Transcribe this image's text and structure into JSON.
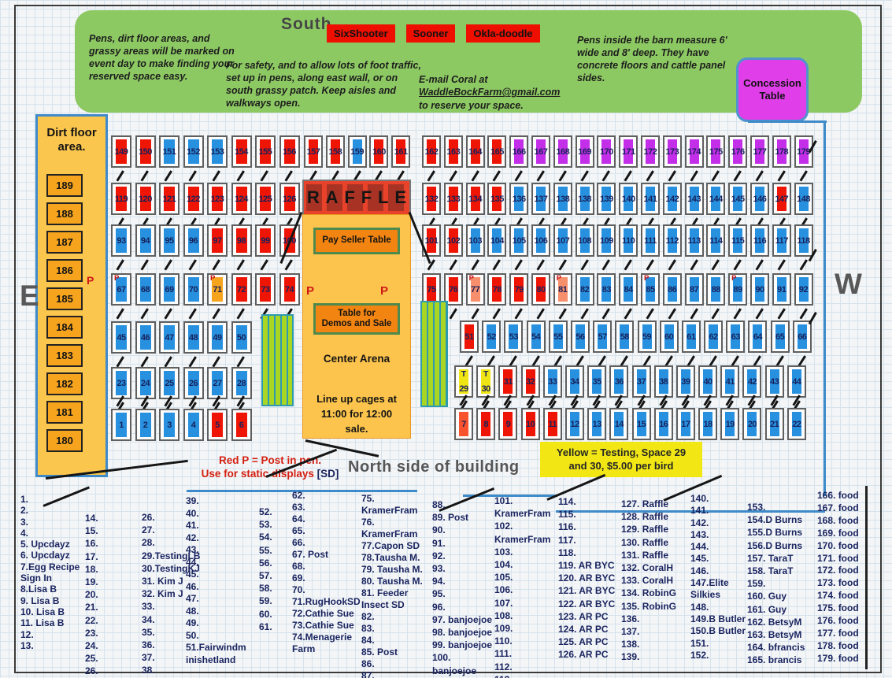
{
  "config": {
    "colors": {
      "red": "#ee1505",
      "blue": "#2791e0",
      "purple": "#c32ee8",
      "yellow": "#efe414",
      "orange": "#f6a41e",
      "salmon": "#f78f6d",
      "redorange": "#f9532e"
    }
  },
  "banner": {
    "note_left": "Pens, dirt floor areas, and grassy areas will  be marked on  event day to make finding your reserved space easy.",
    "south_label": "South",
    "buttons": [
      "SixShooter",
      "Sooner",
      "Okla-doodle"
    ],
    "note_center": "For safety, and to allow lots of foot traffic, set up in pens, along east wall, or on south grassy patch.  Keep aisles and walkways open.",
    "email_pre": "E-mail Coral at ",
    "email_address": "WaddleBockFarm@gmail.com",
    "email_post": " to reserve your space.",
    "note_right": "Pens inside the barn measure 6' wide and 8' deep.  They have concrete floors and cattle panel sides.",
    "concession_label": "Concession Table"
  },
  "walls": {
    "east": "E",
    "west": "W",
    "north_label": "North side of building"
  },
  "dirt_floor": {
    "title_line1": "Dirt floor",
    "title_line2": "area.",
    "p_mark": "P",
    "spaces": [
      "189",
      "188",
      "187",
      "186",
      "185",
      "184",
      "183",
      "182",
      "181",
      "180"
    ]
  },
  "raffle": {
    "letters": [
      "R",
      "A",
      "F",
      "F",
      "L",
      "E"
    ]
  },
  "center_arena": {
    "pay_seller": "Pay  Seller Table",
    "p_left": "P",
    "p_right": "P",
    "demos_line1": "Table for",
    "demos_line2": "Demos and Sale",
    "arena_label": "Center Arena",
    "lineup": "Line up cages at 11:00 for 12:00 sale."
  },
  "legends": {
    "red_p_line1": "Red P = Post in pen.",
    "red_p_line2": "Use for static displays ",
    "red_p_sd": "[SD]",
    "yellow_line1": "Yellow = Testing, Space 29",
    "yellow_line2": "and 30,  $5.00 per bird"
  },
  "pen_rows": [
    {
      "pens": [
        {
          "n": "149",
          "c": "red"
        },
        {
          "n": "150",
          "c": "red"
        },
        {
          "n": "151",
          "c": "blue"
        },
        {
          "n": "152",
          "c": "blue"
        },
        {
          "n": "153",
          "c": "blue"
        },
        {
          "n": "154",
          "c": "red"
        },
        {
          "n": "155",
          "c": "red"
        },
        {
          "n": "156",
          "c": "red"
        }
      ]
    },
    {
      "pens": [
        {
          "n": "157",
          "c": "red"
        },
        {
          "n": "158",
          "c": "red"
        },
        {
          "n": "159",
          "c": "blue"
        },
        {
          "n": "160",
          "c": "red"
        },
        {
          "n": "161",
          "c": "red"
        }
      ]
    },
    {
      "pens": [
        {
          "n": "162",
          "c": "red"
        },
        {
          "n": "163",
          "c": "red"
        },
        {
          "n": "164",
          "c": "red"
        },
        {
          "n": "165",
          "c": "red"
        },
        {
          "n": "166",
          "c": "purple"
        },
        {
          "n": "167",
          "c": "purple"
        },
        {
          "n": "168",
          "c": "purple"
        },
        {
          "n": "169",
          "c": "purple"
        },
        {
          "n": "170",
          "c": "purple"
        },
        {
          "n": "171",
          "c": "purple"
        },
        {
          "n": "172",
          "c": "purple"
        },
        {
          "n": "173",
          "c": "purple"
        },
        {
          "n": "174",
          "c": "purple"
        },
        {
          "n": "175",
          "c": "purple"
        },
        {
          "n": "176",
          "c": "purple"
        },
        {
          "n": "177",
          "c": "purple"
        },
        {
          "n": "178",
          "c": "purple"
        },
        {
          "n": "179",
          "c": "purple"
        }
      ]
    },
    {
      "pens": [
        {
          "n": "119",
          "c": "red"
        },
        {
          "n": "120",
          "c": "red"
        },
        {
          "n": "121",
          "c": "red"
        },
        {
          "n": "122",
          "c": "red"
        },
        {
          "n": "123",
          "c": "red"
        },
        {
          "n": "124",
          "c": "red"
        },
        {
          "n": "125",
          "c": "red"
        },
        {
          "n": "126",
          "c": "red"
        }
      ]
    },
    {
      "pens": [
        {
          "n": "132",
          "c": "red"
        },
        {
          "n": "133",
          "c": "red"
        },
        {
          "n": "134",
          "c": "red"
        },
        {
          "n": "135",
          "c": "red"
        },
        {
          "n": "136",
          "c": "blue"
        },
        {
          "n": "137",
          "c": "blue"
        },
        {
          "n": "138",
          "c": "blue"
        },
        {
          "n": "138",
          "c": "blue"
        },
        {
          "n": "139",
          "c": "blue"
        },
        {
          "n": "140",
          "c": "blue"
        },
        {
          "n": "141",
          "c": "blue"
        },
        {
          "n": "142",
          "c": "blue"
        },
        {
          "n": "143",
          "c": "blue"
        },
        {
          "n": "144",
          "c": "blue"
        },
        {
          "n": "145",
          "c": "blue"
        },
        {
          "n": "146",
          "c": "blue"
        },
        {
          "n": "147",
          "c": "red"
        },
        {
          "n": "148",
          "c": "blue"
        }
      ]
    },
    {
      "pens": [
        {
          "n": "93",
          "c": "blue"
        },
        {
          "n": "94",
          "c": "blue"
        },
        {
          "n": "95",
          "c": "blue"
        },
        {
          "n": "96",
          "c": "blue"
        },
        {
          "n": "97",
          "c": "red"
        },
        {
          "n": "98",
          "c": "red"
        },
        {
          "n": "99",
          "c": "red"
        },
        {
          "n": "100",
          "c": "red"
        }
      ]
    },
    {
      "pens": [
        {
          "n": "101",
          "c": "red"
        },
        {
          "n": "102",
          "c": "red"
        },
        {
          "n": "103",
          "c": "blue"
        },
        {
          "n": "104",
          "c": "blue"
        },
        {
          "n": "105",
          "c": "blue"
        },
        {
          "n": "106",
          "c": "blue"
        },
        {
          "n": "107",
          "c": "blue"
        },
        {
          "n": "108",
          "c": "blue"
        },
        {
          "n": "109",
          "c": "blue"
        },
        {
          "n": "110",
          "c": "blue"
        },
        {
          "n": "111",
          "c": "blue"
        },
        {
          "n": "112",
          "c": "blue"
        },
        {
          "n": "113",
          "c": "blue"
        },
        {
          "n": "114",
          "c": "blue"
        },
        {
          "n": "115",
          "c": "blue"
        },
        {
          "n": "116",
          "c": "blue"
        },
        {
          "n": "117",
          "c": "blue"
        },
        {
          "n": "118",
          "c": "blue"
        }
      ]
    },
    {
      "pens": [
        {
          "n": "67",
          "c": "blue",
          "t": "P"
        },
        {
          "n": "68",
          "c": "blue"
        },
        {
          "n": "69",
          "c": "blue"
        },
        {
          "n": "70",
          "c": "blue"
        },
        {
          "n": "71",
          "c": "orange",
          "t": "P"
        },
        {
          "n": "72",
          "c": "red"
        },
        {
          "n": "73",
          "c": "red"
        },
        {
          "n": "74",
          "c": "red"
        }
      ]
    },
    {
      "pens": [
        {
          "n": "75",
          "c": "red"
        },
        {
          "n": "76",
          "c": "red"
        },
        {
          "n": "77",
          "c": "salmon",
          "t": "P"
        },
        {
          "n": "78",
          "c": "red"
        },
        {
          "n": "79",
          "c": "red"
        },
        {
          "n": "80",
          "c": "red"
        },
        {
          "n": "81",
          "c": "salmon",
          "t": "P"
        },
        {
          "n": "82",
          "c": "blue"
        },
        {
          "n": "83",
          "c": "blue"
        },
        {
          "n": "84",
          "c": "blue"
        },
        {
          "n": "85",
          "c": "blue",
          "t": "P"
        },
        {
          "n": "86",
          "c": "blue"
        },
        {
          "n": "87",
          "c": "blue"
        },
        {
          "n": "88",
          "c": "blue"
        },
        {
          "n": "89",
          "c": "blue",
          "t": "P"
        },
        {
          "n": "90",
          "c": "blue"
        },
        {
          "n": "91",
          "c": "blue"
        },
        {
          "n": "92",
          "c": "blue"
        }
      ]
    },
    {
      "pens": [
        {
          "n": "45",
          "c": "blue"
        },
        {
          "n": "46",
          "c": "blue"
        },
        {
          "n": "47",
          "c": "blue"
        },
        {
          "n": "48",
          "c": "blue"
        },
        {
          "n": "49",
          "c": "blue"
        },
        {
          "n": "50",
          "c": "blue"
        }
      ]
    },
    {
      "pens": [
        {
          "n": "51",
          "c": "red"
        },
        {
          "n": "52",
          "c": "blue"
        },
        {
          "n": "53",
          "c": "blue"
        },
        {
          "n": "54",
          "c": "blue"
        },
        {
          "n": "55",
          "c": "blue"
        },
        {
          "n": "56",
          "c": "blue"
        },
        {
          "n": "57",
          "c": "blue"
        },
        {
          "n": "58",
          "c": "blue"
        },
        {
          "n": "59",
          "c": "blue"
        },
        {
          "n": "60",
          "c": "blue"
        },
        {
          "n": "61",
          "c": "blue"
        },
        {
          "n": "62",
          "c": "blue"
        },
        {
          "n": "63",
          "c": "blue"
        },
        {
          "n": "64",
          "c": "blue"
        },
        {
          "n": "65",
          "c": "blue"
        },
        {
          "n": "66",
          "c": "blue"
        }
      ]
    },
    {
      "pens": [
        {
          "n": "23",
          "c": "blue"
        },
        {
          "n": "24",
          "c": "blue"
        },
        {
          "n": "25",
          "c": "blue"
        },
        {
          "n": "26",
          "c": "blue"
        },
        {
          "n": "27",
          "c": "blue"
        },
        {
          "n": "28",
          "c": "blue"
        }
      ]
    },
    {
      "pens": [
        {
          "n": "29",
          "c": "yellow",
          "t": "T"
        },
        {
          "n": "30",
          "c": "yellow",
          "t": "T"
        },
        {
          "n": "31",
          "c": "red"
        },
        {
          "n": "32",
          "c": "red"
        },
        {
          "n": "33",
          "c": "blue"
        },
        {
          "n": "34",
          "c": "blue"
        },
        {
          "n": "35",
          "c": "blue"
        },
        {
          "n": "36",
          "c": "blue"
        },
        {
          "n": "37",
          "c": "blue"
        },
        {
          "n": "38",
          "c": "blue"
        },
        {
          "n": "39",
          "c": "blue"
        },
        {
          "n": "40",
          "c": "blue"
        },
        {
          "n": "41",
          "c": "blue"
        },
        {
          "n": "42",
          "c": "blue"
        },
        {
          "n": "43",
          "c": "blue"
        },
        {
          "n": "44",
          "c": "blue"
        }
      ]
    },
    {
      "pens": [
        {
          "n": "1",
          "c": "blue"
        },
        {
          "n": "2",
          "c": "blue"
        },
        {
          "n": "3",
          "c": "blue"
        },
        {
          "n": "4",
          "c": "blue"
        },
        {
          "n": "5",
          "c": "red"
        },
        {
          "n": "6",
          "c": "red"
        }
      ]
    },
    {
      "pens": [
        {
          "n": "7",
          "c": "redorange"
        },
        {
          "n": "8",
          "c": "red"
        },
        {
          "n": "9",
          "c": "red"
        },
        {
          "n": "10",
          "c": "red"
        },
        {
          "n": "11",
          "c": "red"
        },
        {
          "n": "12",
          "c": "blue"
        },
        {
          "n": "13",
          "c": "blue"
        },
        {
          "n": "14",
          "c": "blue"
        },
        {
          "n": "15",
          "c": "blue"
        },
        {
          "n": "16",
          "c": "blue"
        },
        {
          "n": "17",
          "c": "blue"
        },
        {
          "n": "18",
          "c": "blue"
        },
        {
          "n": "19",
          "c": "blue"
        },
        {
          "n": "20",
          "c": "blue"
        },
        {
          "n": "21",
          "c": "blue"
        },
        {
          "n": "22",
          "c": "blue"
        }
      ]
    }
  ],
  "roster": {
    "columns": [
      {
        "items": [
          "1.",
          "2.",
          "3.",
          "4.",
          "5. Upcdayz",
          "6. Upcdayz",
          "7.Egg Recipe Sign In",
          "8.Lisa B",
          "9. Lisa B",
          "10. Lisa B",
          "11. Lisa B",
          "12.",
          "13."
        ]
      },
      {
        "items": [
          "14.",
          "15.",
          "16.",
          "17.",
          "18.",
          "19.",
          "20.",
          "21.",
          "22.",
          "23.",
          "24.",
          "25.",
          "26."
        ]
      },
      {
        "items": [
          "26.",
          "27.",
          "28.",
          "29.TestingLB",
          "30.TestingKJ",
          "31. Kim J",
          "32. Kim J",
          "33.",
          "34.",
          "35.",
          "36.",
          "37.",
          "38."
        ]
      },
      {
        "items": [
          "39.",
          "40.",
          "41.",
          "42.",
          "43.",
          "44.",
          "45.",
          "46.",
          "47.",
          "48.",
          "49.",
          "50.",
          "51.Fairwindm inishetland"
        ]
      },
      {
        "items": [
          "52.",
          "53.",
          "54.",
          "55.",
          "56.",
          "57.",
          "58.",
          "59.",
          "60.",
          "61."
        ]
      },
      {
        "items": [
          "62.",
          "63.",
          "64.",
          "65.",
          "66.",
          "67. Post",
          "68.",
          "69.",
          "70.",
          "71.RugHookSD",
          "72.Cathie Sue",
          "73.Cathie Sue",
          "74.Menagerie Farm"
        ]
      },
      {
        "items": [
          "75. KramerFram",
          "76. KramerFram",
          "77.Capon SD",
          "78.Tausha M.",
          "79. Tausha M.",
          "80. Tausha M.",
          "81. Feeder Insect SD",
          "82.",
          "83.",
          "84.",
          "85. Post",
          "86.",
          "87."
        ]
      },
      {
        "items": [
          "88.",
          "89. Post",
          "90.",
          "91.",
          "92.",
          "93.",
          "94.",
          "95.",
          "96.",
          "97. banjoejoe",
          "98. banjoejoe",
          "99. banjoejoe",
          "100. banjoejoe"
        ]
      },
      {
        "items": [
          "101. KramerFram",
          "102. KramerFram",
          "103.",
          "104.",
          "105.",
          "106.",
          "107.",
          "108.",
          "109.",
          "110.",
          "111.",
          "112.",
          "113."
        ]
      },
      {
        "items": [
          "114.",
          "115.",
          "116.",
          "117.",
          "118.",
          "119. AR BYC",
          "120. AR BYC",
          "121. AR BYC",
          "122. AR BYC",
          "123. AR PC",
          "124. AR PC",
          "125. AR PC",
          "126. AR PC"
        ]
      },
      {
        "items": [
          "127. Raffle",
          "128. Raffle",
          "129. Raffle",
          "130. Raffle",
          "131. Raffle",
          "132. CoralH",
          "133. CoralH",
          "134. RobinG",
          "135. RobinG",
          "136.",
          "137.",
          "138.",
          "139."
        ]
      },
      {
        "items": [
          "140.",
          "141.",
          "142.",
          "143.",
          "144.",
          "145.",
          "146.",
          "147.Elite Silkies",
          "148.",
          "149.B Butler",
          "150.B Butler",
          "151.",
          "152."
        ]
      },
      {
        "items": [
          "153.",
          "154.D Burns",
          "155.D Burns",
          "156.D Burns",
          "157. TaraT",
          "158. TaraT",
          "159.",
          "160. Guy",
          "161. Guy",
          "162. BetsyM",
          "163. BetsyM",
          "164. bfrancis",
          "165. brancis"
        ]
      },
      {
        "items": [
          "166. food",
          "167. food",
          "168. food",
          "169. food",
          "170. food",
          "171. food",
          "172. food",
          "173. food",
          "174. food",
          "175. food",
          "176. food",
          "177. food",
          "178. food",
          "179. food"
        ]
      }
    ]
  }
}
